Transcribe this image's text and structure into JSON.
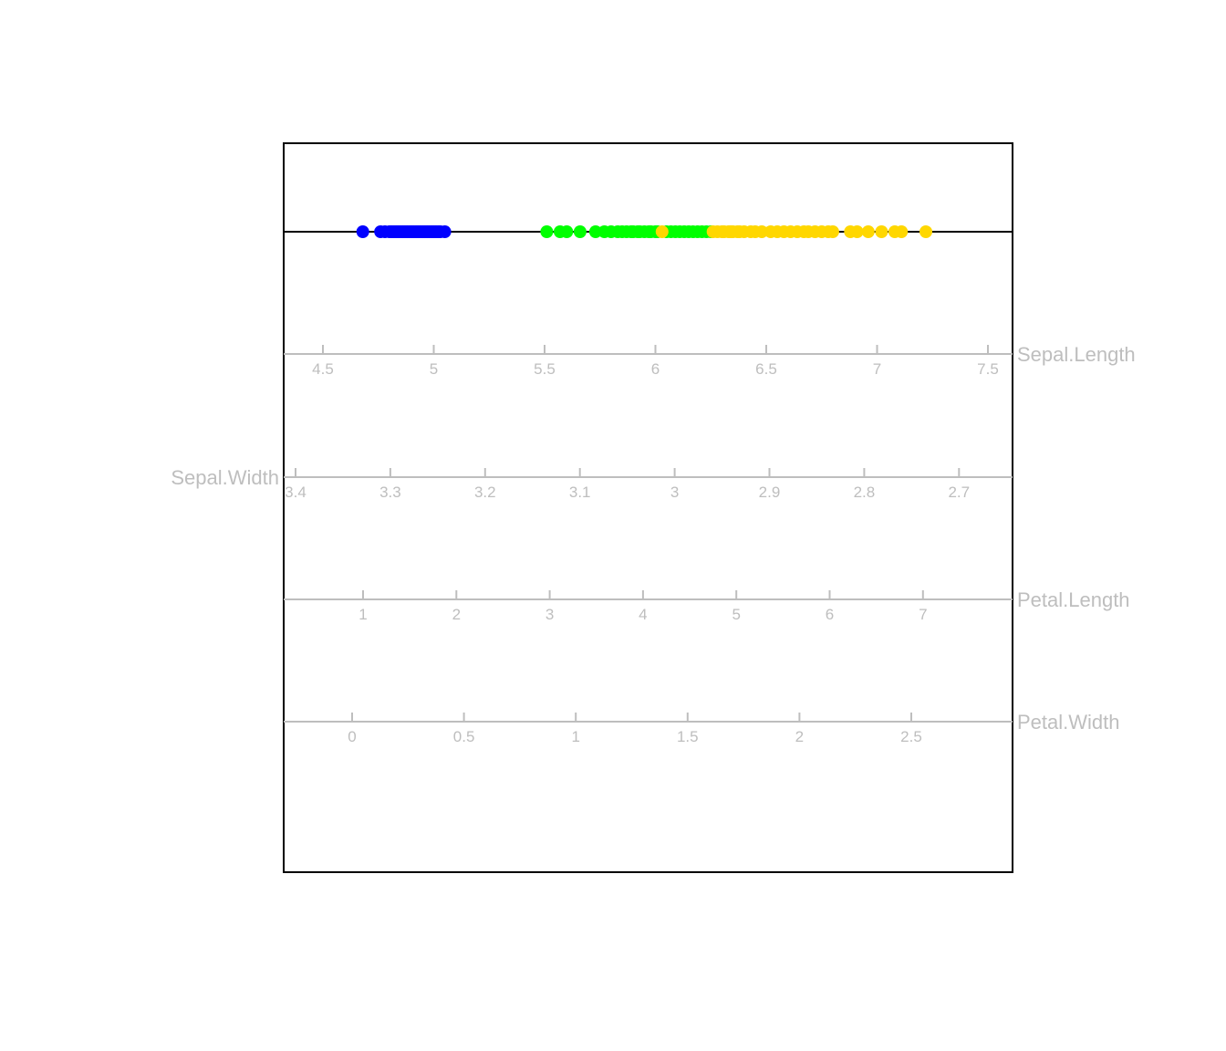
{
  "chart_data": {
    "type": "scatter",
    "title": "",
    "colors": {
      "frame": "#000000",
      "axes": "#bebebe",
      "projection_line": "#000000",
      "groups": [
        "#0000ff",
        "#00ff00",
        "#ffd700"
      ]
    },
    "grid": false,
    "legend": "none",
    "axes": [
      {
        "name": "Sepal.Length",
        "ticks": [
          "4.5",
          "5",
          "5.5",
          "6",
          "6.5",
          "7",
          "7.5"
        ],
        "label_side": "right"
      },
      {
        "name": "Sepal.Width",
        "ticks": [
          "3.4",
          "3.3",
          "3.2",
          "3.1",
          "3",
          "2.9",
          "2.8",
          "2.7"
        ],
        "label_side": "left"
      },
      {
        "name": "Petal.Length",
        "ticks": [
          "1",
          "2",
          "3",
          "4",
          "5",
          "6",
          "7"
        ],
        "label_side": "right"
      },
      {
        "name": "Petal.Width",
        "ticks": [
          "0",
          "0.5",
          "1",
          "1.5",
          "2",
          "2.5"
        ],
        "label_side": "right"
      }
    ],
    "projection": {
      "axis": "Sepal.Length",
      "points": [
        {
          "group": 0,
          "values": [
            4.68,
            4.76,
            4.78,
            4.8,
            4.81,
            4.82,
            4.83,
            4.84,
            4.85,
            4.86,
            4.87,
            4.88,
            4.89,
            4.9,
            4.91,
            4.92,
            4.93,
            4.94,
            4.95,
            4.96,
            4.97,
            4.98,
            4.99,
            5.0,
            5.01,
            5.02,
            5.03,
            5.05
          ]
        },
        {
          "group": 1,
          "values": [
            5.51,
            5.57,
            5.6,
            5.66,
            5.73,
            5.77,
            5.8,
            5.83,
            5.85,
            5.87,
            5.89,
            5.9,
            5.92,
            5.93,
            5.95,
            5.97,
            5.98,
            6.0,
            6.01,
            6.05,
            6.07,
            6.09,
            6.11,
            6.13,
            6.15,
            6.17,
            6.19,
            6.21,
            6.23,
            6.25
          ]
        },
        {
          "group": 2,
          "values": [
            6.03,
            6.26,
            6.28,
            6.3,
            6.31,
            6.33,
            6.34,
            6.35,
            6.37,
            6.38,
            6.4,
            6.43,
            6.45,
            6.48,
            6.52,
            6.55,
            6.58,
            6.61,
            6.64,
            6.67,
            6.69,
            6.72,
            6.75,
            6.78,
            6.8,
            6.88,
            6.91,
            6.96,
            7.02,
            7.08,
            7.11,
            7.22
          ]
        }
      ]
    }
  }
}
